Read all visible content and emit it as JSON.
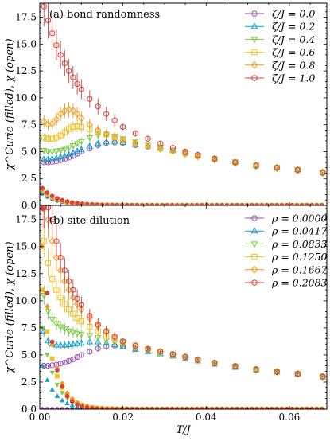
{
  "chart_data": [
    {
      "type": "scatter",
      "panel_label": "(a)",
      "title": "bond randomness",
      "ylabel": "χ^Curie (filled), χ (open)",
      "xlabel": "",
      "xlim": [
        0.0,
        0.069
      ],
      "ylim": [
        0.0,
        18.8
      ],
      "yticks": [
        "0.0",
        "2.5",
        "5.0",
        "7.5",
        "10.0",
        "12.5",
        "15.0",
        "17.5"
      ],
      "ytick_values": [
        0.0,
        2.5,
        5.0,
        7.5,
        10.0,
        12.5,
        15.0,
        17.5
      ],
      "xticks": [
        0.0,
        0.02,
        0.04,
        0.06
      ],
      "xtick_labels": [
        "",
        "",
        "",
        ""
      ],
      "legend_position": "top-right",
      "marker_open": "χ",
      "marker_filled": "χ^Curie",
      "series": [
        {
          "name": "ζ/J = 0.0",
          "color": "#9b4fb5",
          "marker": "circle",
          "open": {
            "x": [
              0.001,
              0.002,
              0.003,
              0.004,
              0.005,
              0.006,
              0.007,
              0.008,
              0.009,
              0.01,
              0.012,
              0.014,
              0.016,
              0.018,
              0.02,
              0.023,
              0.026,
              0.029,
              0.032,
              0.035,
              0.038,
              0.042,
              0.047,
              0.052,
              0.057,
              0.062,
              0.068
            ],
            "y": [
              4.0,
              4.0,
              4.05,
              4.1,
              4.2,
              4.3,
              4.45,
              4.6,
              4.8,
              5.0,
              5.3,
              5.6,
              5.8,
              5.85,
              5.8,
              5.6,
              5.45,
              5.3,
              5.1,
              4.85,
              4.6,
              4.3,
              4.0,
              3.7,
              3.5,
              3.3,
              3.05
            ]
          },
          "filled": {
            "y_start": 1.1,
            "decay": 0.004
          }
        },
        {
          "name": "ζ/J = 0.2",
          "color": "#17a3c8",
          "marker": "triangle-up",
          "open": {
            "x": [
              0.001,
              0.002,
              0.003,
              0.004,
              0.005,
              0.006,
              0.007,
              0.008,
              0.009,
              0.01,
              0.012,
              0.014,
              0.016,
              0.018,
              0.02,
              0.023,
              0.026,
              0.029,
              0.032,
              0.035,
              0.038,
              0.042,
              0.047,
              0.052,
              0.057,
              0.062,
              0.068
            ],
            "y": [
              4.3,
              4.3,
              4.35,
              4.4,
              4.5,
              4.6,
              4.75,
              4.9,
              5.05,
              5.2,
              5.5,
              5.75,
              5.9,
              5.95,
              5.85,
              5.65,
              5.5,
              5.35,
              5.15,
              4.9,
              4.65,
              4.35,
              4.05,
              3.75,
              3.55,
              3.35,
              3.1
            ]
          },
          "filled": {
            "y_start": 1.2,
            "decay": 0.004
          }
        },
        {
          "name": "ζ/J = 0.4",
          "color": "#7ac943",
          "marker": "triangle-down",
          "open": {
            "x": [
              0.001,
              0.002,
              0.003,
              0.004,
              0.005,
              0.006,
              0.007,
              0.008,
              0.009,
              0.01,
              0.012,
              0.014,
              0.016,
              0.018,
              0.02,
              0.023,
              0.026,
              0.029,
              0.032,
              0.035,
              0.038,
              0.042,
              0.047,
              0.052,
              0.057,
              0.062,
              0.068
            ],
            "y": [
              5.1,
              5.0,
              5.0,
              5.05,
              5.1,
              5.2,
              5.35,
              5.55,
              5.75,
              5.95,
              6.3,
              6.55,
              6.6,
              6.45,
              6.2,
              5.9,
              5.6,
              5.4,
              5.15,
              4.9,
              4.65,
              4.35,
              4.05,
              3.75,
              3.55,
              3.35,
              3.1
            ]
          },
          "filled": {
            "y_start": 1.3,
            "decay": 0.004
          }
        },
        {
          "name": "ζ/J = 0.6",
          "color": "#f0c020",
          "marker": "square",
          "open": {
            "x": [
              0.001,
              0.002,
              0.003,
              0.004,
              0.005,
              0.006,
              0.007,
              0.008,
              0.009,
              0.01,
              0.012,
              0.014,
              0.016,
              0.018,
              0.02,
              0.023,
              0.026,
              0.029,
              0.032,
              0.035,
              0.038,
              0.042,
              0.047,
              0.052,
              0.057,
              0.062,
              0.068
            ],
            "y": [
              6.3,
              6.2,
              6.2,
              6.3,
              6.5,
              6.8,
              7.1,
              7.3,
              7.35,
              7.3,
              7.1,
              6.85,
              6.6,
              6.35,
              6.1,
              5.8,
              5.55,
              5.3,
              5.1,
              4.85,
              4.6,
              4.3,
              4.0,
              3.7,
              3.5,
              3.3,
              3.05
            ]
          },
          "filled": {
            "y_start": 1.4,
            "decay": 0.004
          }
        },
        {
          "name": "ζ/J = 0.8",
          "color": "#f39a1c",
          "marker": "diamond",
          "open": {
            "x": [
              0.001,
              0.002,
              0.003,
              0.004,
              0.005,
              0.006,
              0.007,
              0.008,
              0.009,
              0.01,
              0.012,
              0.014,
              0.016,
              0.018,
              0.02,
              0.023,
              0.026,
              0.029,
              0.032,
              0.035,
              0.038,
              0.042,
              0.047,
              0.052,
              0.057,
              0.062,
              0.068
            ],
            "y": [
              7.8,
              7.5,
              7.6,
              8.0,
              8.5,
              8.8,
              8.9,
              8.8,
              8.5,
              8.1,
              7.5,
              7.0,
              6.6,
              6.3,
              6.05,
              5.75,
              5.5,
              5.25,
              5.05,
              4.8,
              4.55,
              4.25,
              3.95,
              3.65,
              3.45,
              3.25,
              3.0
            ]
          },
          "filled": {
            "y_start": 1.5,
            "decay": 0.004
          }
        },
        {
          "name": "ζ/J = 1.0",
          "color": "#d9413a",
          "marker": "hexagon",
          "open": {
            "x": [
              0.001,
              0.002,
              0.003,
              0.004,
              0.005,
              0.006,
              0.007,
              0.008,
              0.009,
              0.01,
              0.012,
              0.014,
              0.016,
              0.018,
              0.02,
              0.023,
              0.026,
              0.029,
              0.032,
              0.035,
              0.038,
              0.042,
              0.047,
              0.052,
              0.057,
              0.062,
              0.068
            ],
            "y": [
              18.5,
              17.2,
              16.0,
              14.9,
              14.0,
              13.2,
              12.5,
              11.9,
              11.3,
              10.8,
              9.9,
              9.2,
              8.5,
              7.9,
              7.3,
              6.7,
              6.2,
              5.75,
              5.35,
              5.0,
              4.7,
              4.35,
              4.0,
              3.7,
              3.5,
              3.3,
              3.05
            ]
          },
          "filled": {
            "y_start": 1.6,
            "decay": 0.004
          }
        }
      ]
    },
    {
      "type": "scatter",
      "panel_label": "(b)",
      "title": "site dilution",
      "ylabel": "χ^Curie (filled), χ (open)",
      "xlabel": "T/J",
      "xlim": [
        0.0,
        0.069
      ],
      "ylim": [
        0.0,
        18.8
      ],
      "yticks": [
        "0.0",
        "2.5",
        "5.0",
        "7.5",
        "10.0",
        "12.5",
        "15.0",
        "17.5"
      ],
      "ytick_values": [
        0.0,
        2.5,
        5.0,
        7.5,
        10.0,
        12.5,
        15.0,
        17.5
      ],
      "xticks": [
        0.0,
        0.02,
        0.04,
        0.06
      ],
      "xtick_labels": [
        "0.00",
        "0.02",
        "0.04",
        "0.06"
      ],
      "legend_position": "top-right",
      "series": [
        {
          "name": "ρ = 0.0000",
          "color": "#9b4fb5",
          "marker": "circle",
          "open": {
            "x": [
              0.001,
              0.002,
              0.003,
              0.004,
              0.005,
              0.006,
              0.007,
              0.008,
              0.009,
              0.01,
              0.012,
              0.014,
              0.016,
              0.018,
              0.02,
              0.023,
              0.026,
              0.029,
              0.032,
              0.035,
              0.038,
              0.042,
              0.047,
              0.052,
              0.057,
              0.062,
              0.068
            ],
            "y": [
              4.0,
              4.0,
              4.05,
              4.1,
              4.2,
              4.3,
              4.45,
              4.6,
              4.8,
              5.0,
              5.3,
              5.6,
              5.8,
              5.85,
              5.8,
              5.6,
              5.45,
              5.3,
              5.1,
              4.85,
              4.6,
              4.3,
              4.0,
              3.7,
              3.5,
              3.3,
              3.05
            ]
          },
          "filled": {
            "y_start": 0.0,
            "decay": 0.004
          }
        },
        {
          "name": "ρ = 0.0417",
          "color": "#17a3c8",
          "marker": "triangle-up",
          "open": {
            "x": [
              0.001,
              0.002,
              0.003,
              0.004,
              0.005,
              0.006,
              0.007,
              0.008,
              0.009,
              0.01,
              0.012,
              0.014,
              0.016,
              0.018,
              0.02,
              0.023,
              0.026,
              0.029,
              0.032,
              0.035,
              0.038,
              0.042,
              0.047,
              0.052,
              0.057,
              0.062,
              0.068
            ],
            "y": [
              7.2,
              6.3,
              6.0,
              5.9,
              5.9,
              5.9,
              5.95,
              6.0,
              6.05,
              6.1,
              6.2,
              6.2,
              6.1,
              5.95,
              5.75,
              5.5,
              5.3,
              5.1,
              4.9,
              4.65,
              4.45,
              4.15,
              3.85,
              3.6,
              3.4,
              3.2,
              2.95
            ]
          },
          "filled": {
            "y_start": 4.0,
            "decay": 0.003
          }
        },
        {
          "name": "ρ = 0.0833",
          "color": "#7ac943",
          "marker": "triangle-down",
          "open": {
            "x": [
              0.001,
              0.002,
              0.003,
              0.004,
              0.005,
              0.006,
              0.007,
              0.008,
              0.009,
              0.01,
              0.012,
              0.014,
              0.016,
              0.018,
              0.02,
              0.023,
              0.026,
              0.029,
              0.032,
              0.035,
              0.038,
              0.042,
              0.047,
              0.052,
              0.057,
              0.062,
              0.068
            ],
            "y": [
              10.5,
              9.0,
              8.3,
              7.9,
              7.6,
              7.4,
              7.2,
              7.1,
              7.0,
              6.9,
              6.8,
              6.6,
              6.4,
              6.2,
              5.95,
              5.65,
              5.4,
              5.15,
              4.95,
              4.7,
              4.5,
              4.2,
              3.9,
              3.6,
              3.4,
              3.2,
              2.95
            ]
          },
          "filled": {
            "y_start": 7.5,
            "decay": 0.003
          }
        },
        {
          "name": "ρ = 0.1250",
          "color": "#f0c020",
          "marker": "square",
          "open": {
            "x": [
              0.001,
              0.002,
              0.003,
              0.004,
              0.005,
              0.006,
              0.007,
              0.008,
              0.009,
              0.01,
              0.012,
              0.014,
              0.016,
              0.018,
              0.02,
              0.023,
              0.026,
              0.029,
              0.032,
              0.035,
              0.038,
              0.042,
              0.047,
              0.052,
              0.057,
              0.062,
              0.068
            ],
            "y": [
              15.5,
              13.5,
              12.0,
              11.0,
              10.3,
              9.7,
              9.2,
              8.8,
              8.4,
              8.1,
              7.6,
              7.2,
              6.8,
              6.5,
              6.2,
              5.85,
              5.55,
              5.3,
              5.05,
              4.8,
              4.55,
              4.25,
              3.95,
              3.65,
              3.45,
              3.25,
              3.0
            ]
          },
          "filled": {
            "y_start": 11.0,
            "decay": 0.0028
          }
        },
        {
          "name": "ρ = 0.1667",
          "color": "#f39a1c",
          "marker": "diamond",
          "open": {
            "x": [
              0.001,
              0.002,
              0.003,
              0.004,
              0.005,
              0.006,
              0.007,
              0.008,
              0.009,
              0.01,
              0.012,
              0.014,
              0.016,
              0.018,
              0.02,
              0.023,
              0.026,
              0.029,
              0.032,
              0.035,
              0.038,
              0.042,
              0.047,
              0.052,
              0.057,
              0.062,
              0.068
            ],
            "y": [
              18.5,
              17.5,
              15.5,
              14.0,
              12.8,
              11.8,
              11.0,
              10.3,
              9.7,
              9.2,
              8.4,
              7.7,
              7.1,
              6.6,
              6.2,
              5.85,
              5.55,
              5.3,
              5.05,
              4.8,
              4.55,
              4.25,
              3.95,
              3.65,
              3.45,
              3.25,
              3.0
            ]
          },
          "filled": {
            "y_start": 15.0,
            "decay": 0.0026
          }
        },
        {
          "name": "ρ = 0.2083",
          "color": "#d9413a",
          "marker": "hexagon",
          "open": {
            "x": [
              0.001,
              0.002,
              0.003,
              0.004,
              0.005,
              0.006,
              0.007,
              0.008,
              0.009,
              0.01,
              0.012,
              0.014,
              0.016,
              0.018,
              0.02,
              0.023,
              0.026,
              0.029,
              0.032,
              0.035,
              0.038,
              0.042,
              0.047,
              0.052,
              0.057,
              0.062,
              0.068
            ],
            "y": [
              18.6,
              18.6,
              17.5,
              15.5,
              14.0,
              12.8,
              11.8,
              11.0,
              10.2,
              9.6,
              8.6,
              7.8,
              7.2,
              6.7,
              6.25,
              5.85,
              5.55,
              5.3,
              5.05,
              4.8,
              4.55,
              4.25,
              3.95,
              3.65,
              3.45,
              3.25,
              3.0
            ]
          },
          "filled": {
            "y_start": 18.5,
            "decay": 0.0022
          }
        }
      ]
    }
  ]
}
